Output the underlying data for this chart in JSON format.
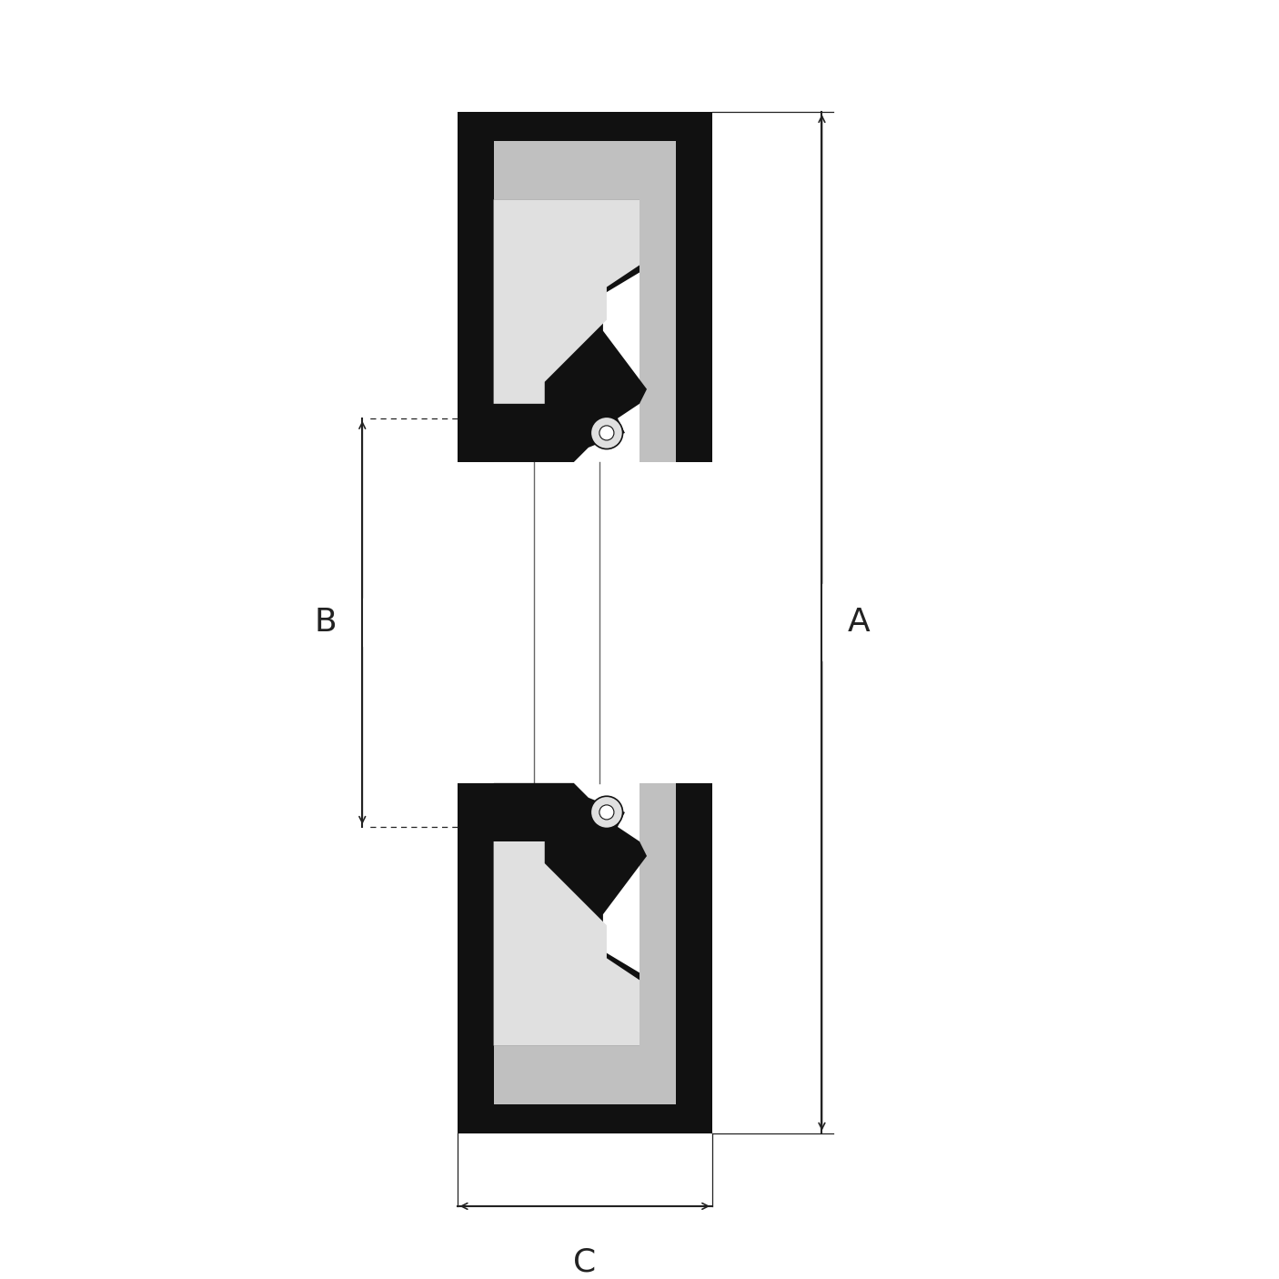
{
  "bg_color": "#ffffff",
  "fill_black": "#111111",
  "fill_gray": "#c0c0c0",
  "fill_lgray": "#e0e0e0",
  "fill_white": "#ffffff",
  "dim_color": "#222222",
  "label_A": "A",
  "label_B": "B",
  "label_C": "C",
  "figsize": [
    14.06,
    14.06
  ],
  "dpi": 100,
  "xlim": [
    -6,
    8
  ],
  "ylim": [
    -8.5,
    8.5
  ]
}
